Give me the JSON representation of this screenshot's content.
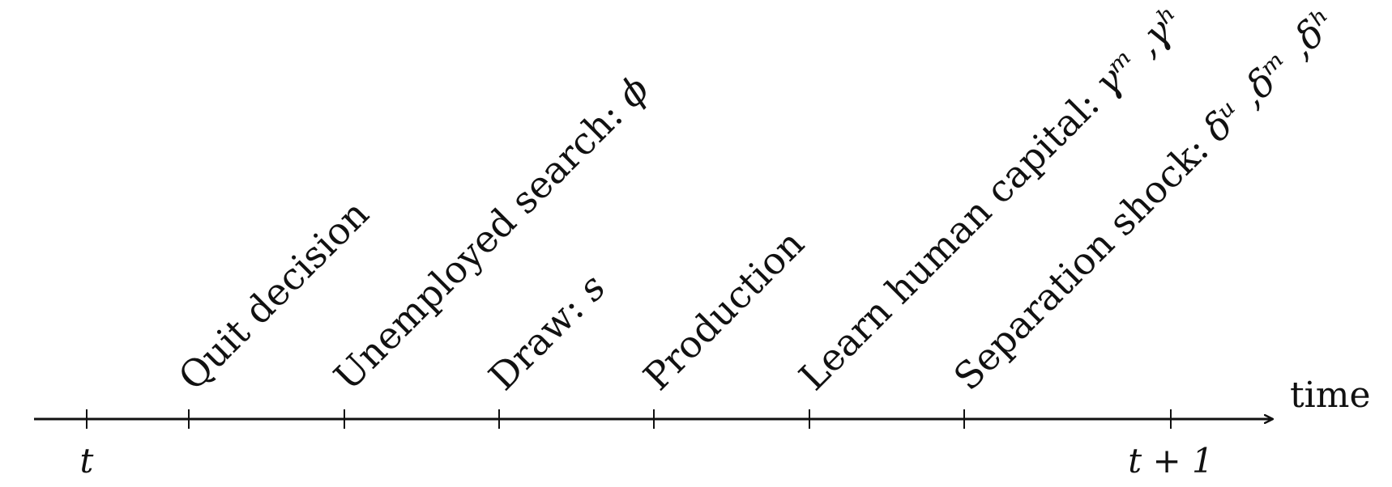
{
  "diagram": {
    "axis_label": "time",
    "start_tick_label": "t",
    "end_tick_label": "t + 1",
    "events": [
      {
        "text": "Quit decision",
        "math": ""
      },
      {
        "text": "Unemployed search: ",
        "math": "ϕ"
      },
      {
        "text": "Draw: ",
        "math": "s"
      },
      {
        "text": "Production",
        "math": ""
      },
      {
        "text": "Learn human capital: ",
        "math": "γᵐ ,γʰ"
      },
      {
        "text": "Separation shock: ",
        "math": "δᵘ ,δᵐ ,δʰ"
      }
    ]
  },
  "colors": {
    "ink": "#111111",
    "background": "#ffffff"
  }
}
